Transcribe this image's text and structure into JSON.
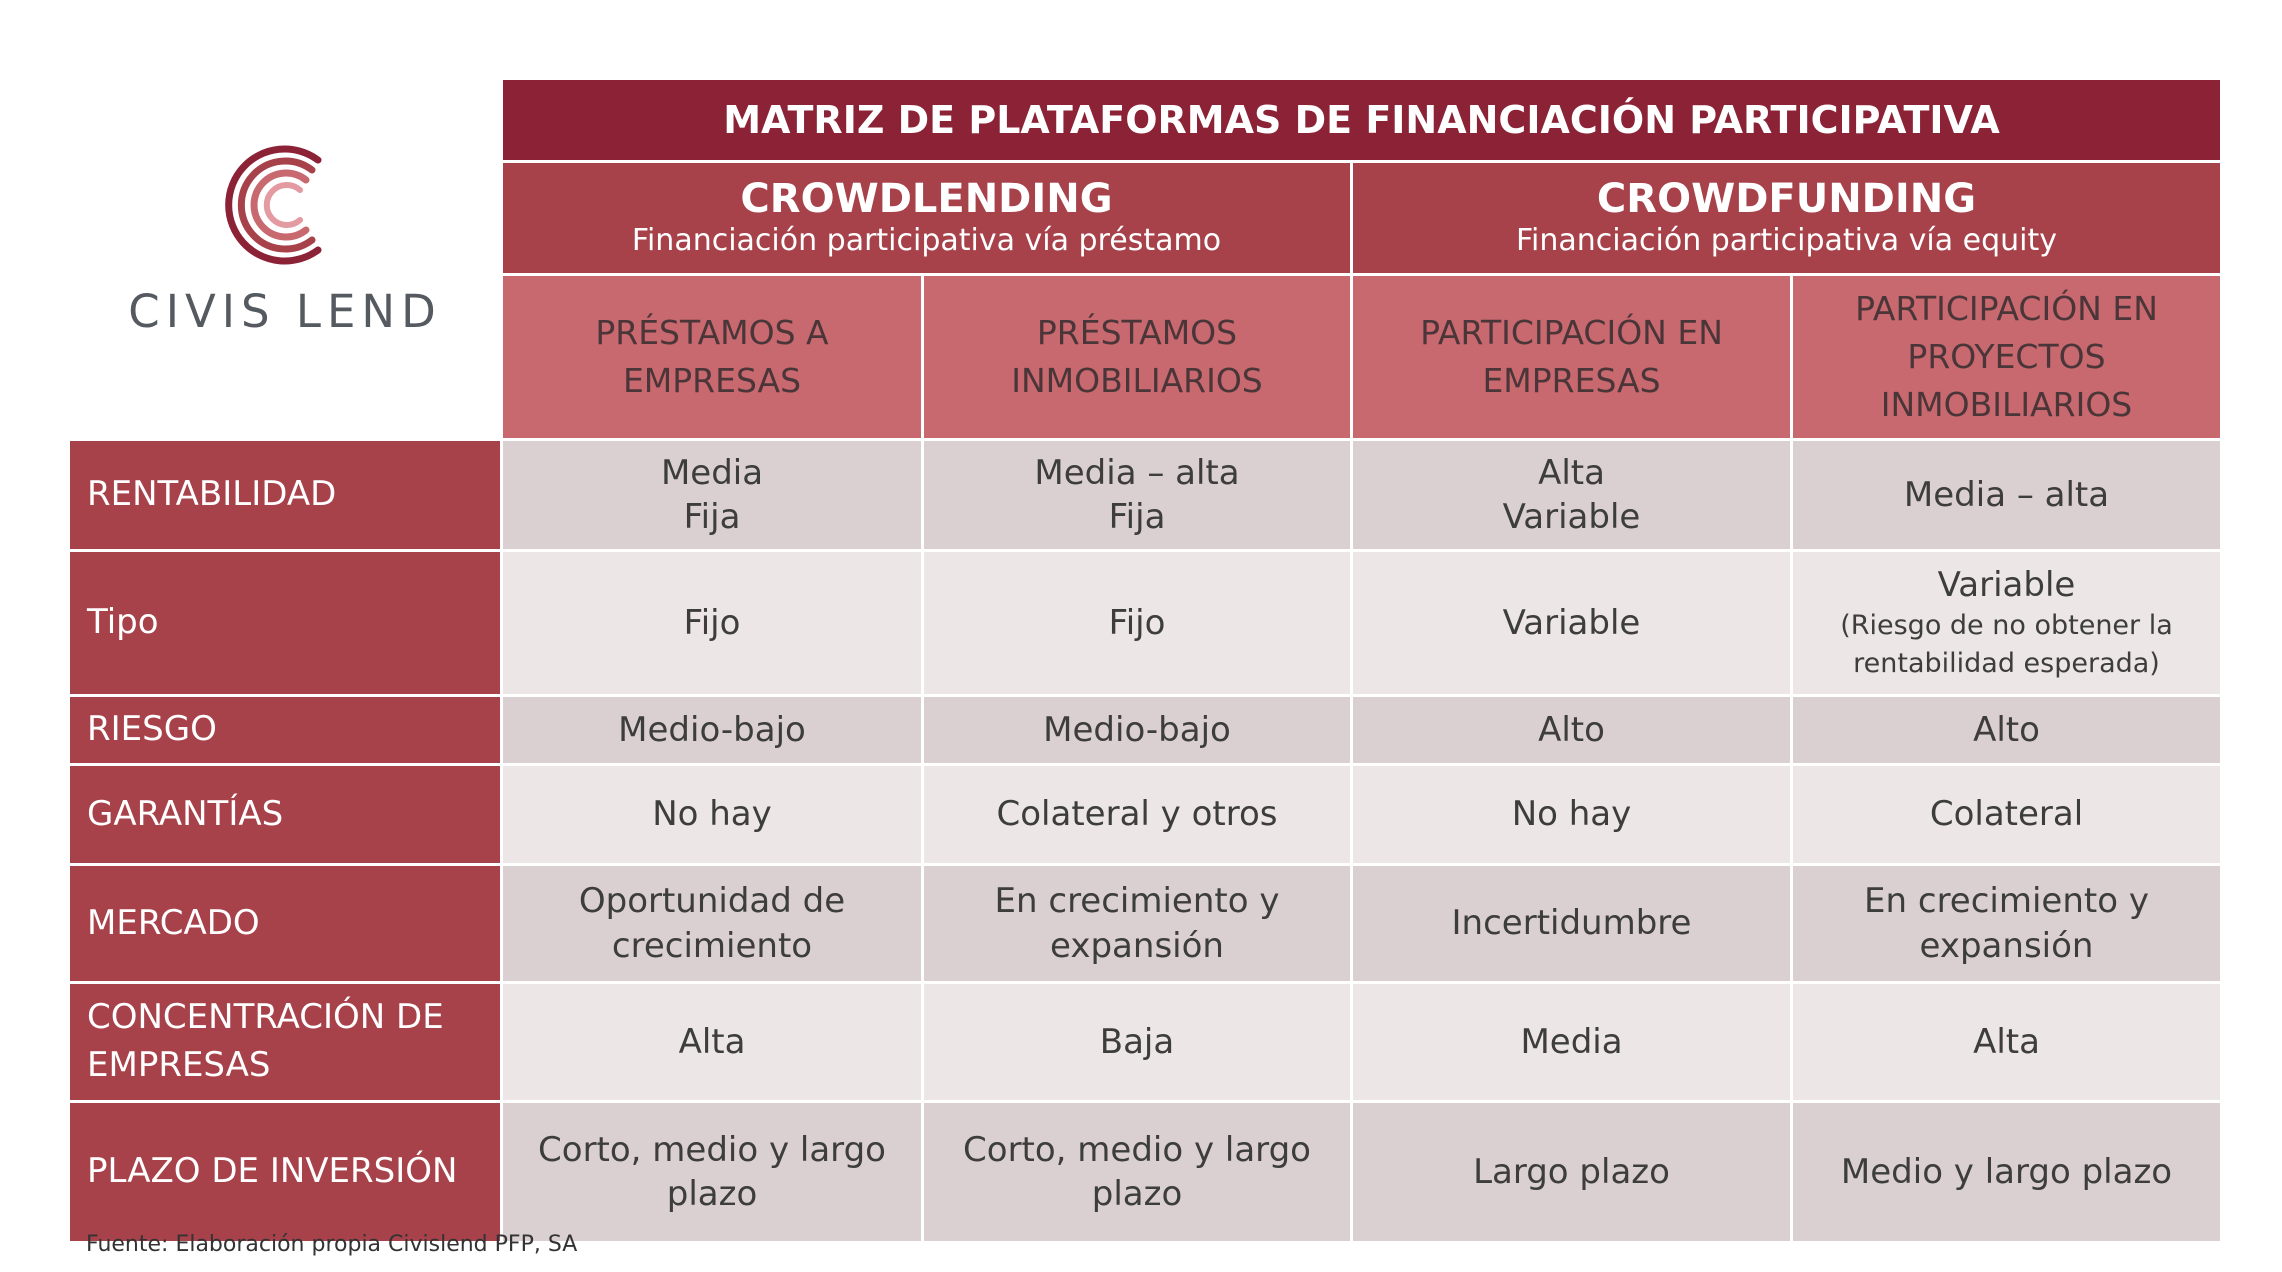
{
  "brand": {
    "name": "CIVIS LEND"
  },
  "title": "MATRIZ DE PLATAFORMAS DE FINANCIACIÓN PARTICIPATIVA",
  "groups": [
    {
      "name": "CROWDLENDING",
      "subtitle": "Financiación participativa vía préstamo"
    },
    {
      "name": "CROWDFUNDING",
      "subtitle": "Financiación participativa vía equity"
    }
  ],
  "columns": [
    {
      "l1": "PRÉSTAMOS A",
      "l2": "EMPRESAS"
    },
    {
      "l1": "PRÉSTAMOS",
      "l2": "INMOBILIARIOS"
    },
    {
      "l1": "PARTICIPACIÓN EN",
      "l2": "EMPRESAS"
    },
    {
      "l1": "PARTICIPACIÓN EN",
      "l2": "PROYECTOS",
      "l3": "INMOBILIARIOS"
    }
  ],
  "rows": [
    {
      "label": "RENTABILIDAD",
      "cells": [
        {
          "l1": "Media",
          "l2": "Fija"
        },
        {
          "l1": "Media – alta",
          "l2": "Fija"
        },
        {
          "l1": "Alta",
          "l2": "Variable"
        },
        {
          "l1": "Media – alta"
        }
      ]
    },
    {
      "label": "Tipo",
      "cells": [
        {
          "l1": "Fijo"
        },
        {
          "l1": "Fijo"
        },
        {
          "l1": "Variable"
        },
        {
          "l1": "Variable",
          "n1": "(Riesgo de no obtener la",
          "n2": "rentabilidad esperada)"
        }
      ]
    },
    {
      "label": "RIESGO",
      "cells": [
        {
          "l1": "Medio-bajo"
        },
        {
          "l1": "Medio-bajo"
        },
        {
          "l1": "Alto"
        },
        {
          "l1": "Alto"
        }
      ]
    },
    {
      "label": "GARANTÍAS",
      "cells": [
        {
          "l1": "No hay"
        },
        {
          "l1": "Colateral y otros"
        },
        {
          "l1": "No hay"
        },
        {
          "l1": "Colateral"
        }
      ]
    },
    {
      "label": "MERCADO",
      "cells": [
        {
          "l1": "Oportunidad de",
          "l2": "crecimiento"
        },
        {
          "l1": "En crecimiento y",
          "l2": "expansión"
        },
        {
          "l1": "Incertidumbre"
        },
        {
          "l1": "En crecimiento y",
          "l2": "expansión"
        }
      ]
    },
    {
      "label": "CONCENTRACIÓN DE",
      "label2": "EMPRESAS",
      "cells": [
        {
          "l1": "Alta"
        },
        {
          "l1": "Baja"
        },
        {
          "l1": "Media"
        },
        {
          "l1": "Alta"
        }
      ]
    },
    {
      "label": "PLAZO DE INVERSIÓN",
      "cells": [
        {
          "l1": "Corto, medio y largo",
          "l2": "plazo"
        },
        {
          "l1": "Corto, medio y largo",
          "l2": "plazo"
        },
        {
          "l1": "Largo plazo"
        },
        {
          "l1": "Medio y largo plazo"
        }
      ]
    }
  ],
  "footer": "Fuente: Elaboración propia Civislend PFP, SA",
  "colors": {
    "title_bg": "#8b2236",
    "header_bg": "#a7414a",
    "subheader_bg": "#c8686f",
    "row_dark": "#dbd0d1",
    "row_light": "#ece6e6"
  }
}
